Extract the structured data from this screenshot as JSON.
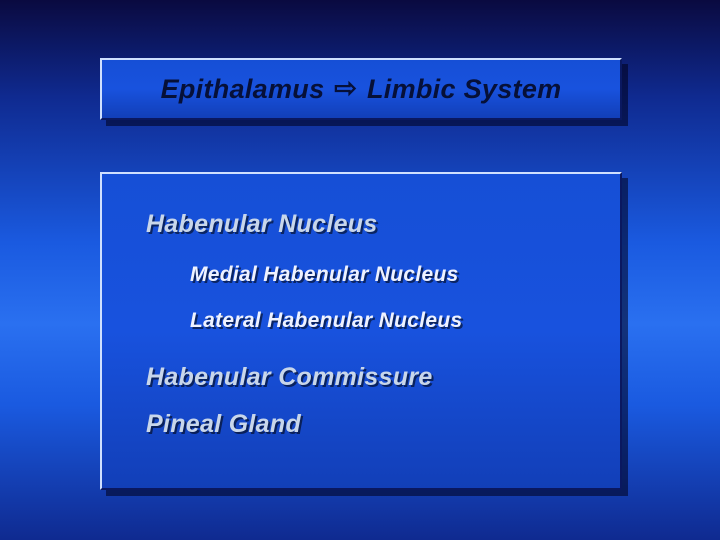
{
  "slide": {
    "background_gradient": [
      "#0a0a40",
      "#0f2a90",
      "#1a5ae0",
      "#2a70f0",
      "#1a5ae0",
      "#0f2a90"
    ],
    "panel_fill": "#1750d8",
    "panel_border_light": "#cfe0ff",
    "panel_border_dark": "#0a1860",
    "panel_shadow": "rgba(0,0,25,0.55)"
  },
  "title": {
    "left": "Epithalamus",
    "arrow": "⇨",
    "right": "Limbic System",
    "fontsize": 27,
    "color": "#061038",
    "italic": true,
    "bold": true
  },
  "content": {
    "font_family": "Arial",
    "level1_fontsize": 25,
    "level1_color": "#c8d6ea",
    "level2_fontsize": 21,
    "level2_color": "#eef2ff",
    "shadow_color": "rgba(0,0,0,0.55)",
    "items": [
      {
        "text": "Habenular Nucleus",
        "level": 1
      },
      {
        "text": "Medial Habenular Nucleus",
        "level": 2
      },
      {
        "text": "Lateral Habenular Nucleus",
        "level": 2
      },
      {
        "text": "Habenular Commissure",
        "level": 1
      },
      {
        "text": "Pineal Gland",
        "level": 1
      }
    ]
  }
}
